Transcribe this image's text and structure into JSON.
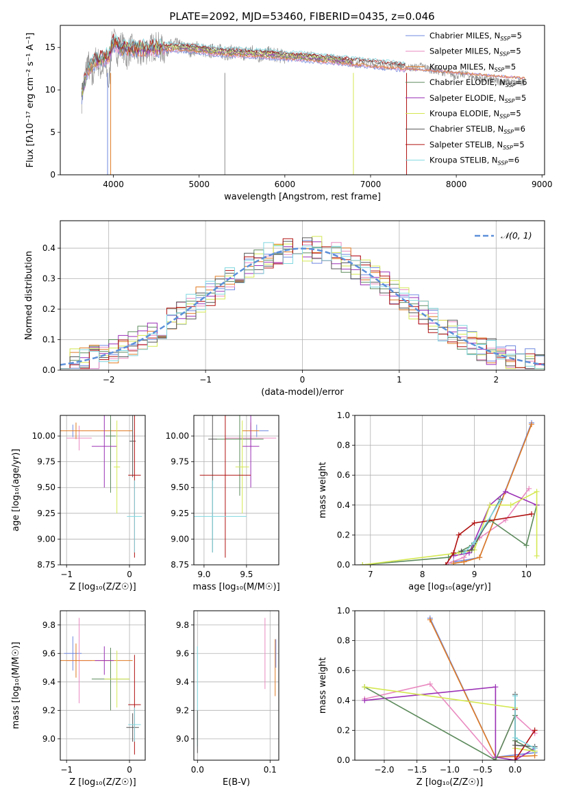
{
  "figure_title": "PLATE=2092, MJD=53460, FIBERID=0435, z=0.046",
  "models": [
    {
      "name": "Chabrier MILES",
      "nssp": "5",
      "color": "#6f88e0"
    },
    {
      "name": "Salpeter MILES",
      "nssp": "5",
      "color": "#e98ac0"
    },
    {
      "name": "Kroupa MILES",
      "nssp": "5",
      "color": "#e07a22"
    },
    {
      "name": "Chabrier ELODIE",
      "nssp": "6",
      "color": "#5c8a5c"
    },
    {
      "name": "Salpeter ELODIE",
      "nssp": "5",
      "color": "#9a2fb5"
    },
    {
      "name": "Kroupa ELODIE",
      "nssp": "5",
      "color": "#d4e850"
    },
    {
      "name": "Chabrier STELIB",
      "nssp": "6",
      "color": "#555555"
    },
    {
      "name": "Salpeter STELIB",
      "nssp": "5",
      "color": "#b01010"
    },
    {
      "name": "Kroupa STELIB",
      "nssp": "6",
      "color": "#7fd7e0"
    }
  ],
  "chart_data": [
    {
      "id": "spectrum",
      "type": "line",
      "xlabel": "wavelength [Angstrom, rest frame]",
      "ylabel": "Flux [fλ10⁻¹⁷ erg cm⁻² s⁻¹ A⁻¹]",
      "xlim": [
        3380,
        9030
      ],
      "ylim": [
        0,
        17.6
      ],
      "xticks": [
        4000,
        5000,
        6000,
        7000,
        8000,
        9000
      ],
      "yticks": [
        0,
        5,
        10,
        15
      ],
      "grid": false,
      "legend": "right",
      "data_color": "#8a8a8a",
      "data_x": [
        3630,
        3650,
        3700,
        3750,
        3800,
        3850,
        3900,
        3950,
        3970,
        4000,
        4050,
        4100,
        4150,
        4200,
        4300,
        4400,
        4500,
        4600,
        4700,
        4800,
        4900,
        5000,
        5100,
        5200,
        5300,
        5400,
        5500,
        5600,
        5700,
        5800,
        5900,
        6000,
        6100,
        6200,
        6300,
        6400,
        6500,
        6600,
        6700,
        6800,
        6900,
        7000,
        7100,
        7200,
        7300,
        7400,
        7500,
        7600,
        7700,
        7800,
        7900,
        8000,
        8100,
        8200,
        8300,
        8400,
        8500,
        8600,
        8700,
        8800
      ],
      "data_y": [
        9.0,
        10.5,
        13.5,
        11.0,
        14.0,
        12.5,
        13.0,
        10.5,
        14.5,
        16.0,
        14.5,
        15.5,
        13.8,
        15.0,
        14.0,
        14.8,
        15.2,
        14.6,
        15.4,
        15.0,
        14.7,
        15.0,
        14.4,
        14.8,
        14.3,
        14.5,
        14.2,
        14.6,
        14.0,
        14.3,
        14.1,
        13.9,
        14.0,
        13.8,
        14.1,
        13.6,
        13.9,
        13.5,
        13.4,
        13.0,
        13.2,
        13.1,
        12.9,
        12.8,
        13.0,
        12.7,
        12.6,
        12.8,
        12.4,
        12.2,
        12.0,
        11.7,
        11.9,
        11.5,
        11.3,
        11.2,
        11.0,
        10.9,
        10.8,
        11.0
      ],
      "model_x": [
        3630,
        3700,
        3800,
        3900,
        3950,
        4000,
        4100,
        4200,
        4400,
        4600,
        4800,
        5000,
        5200,
        5400,
        5600,
        5800,
        6000,
        6200,
        6400,
        6600,
        6800,
        7000,
        7200,
        7400
      ],
      "model_y": [
        9.5,
        12.5,
        13.5,
        13.8,
        14.2,
        15.6,
        15.0,
        14.8,
        14.9,
        15.0,
        15.0,
        14.8,
        14.5,
        14.4,
        14.3,
        14.2,
        14.0,
        13.9,
        13.7,
        13.5,
        13.3,
        13.1,
        12.9,
        12.7
      ],
      "dips": [
        {
          "x": 3932,
          "model": "Chabrier MILES"
        },
        {
          "x": 3968,
          "model": "Kroupa MILES"
        },
        {
          "x": 6800,
          "model": "Kroupa ELODIE"
        },
        {
          "x": 7420,
          "model": "Salpeter STELIB"
        },
        {
          "x": 5300,
          "model": "data"
        }
      ]
    },
    {
      "id": "residuals",
      "type": "histogram",
      "xlabel": "(data-model)/error",
      "ylabel": "Normed distribution",
      "xlim": [
        -2.5,
        2.5
      ],
      "ylim": [
        0,
        0.49
      ],
      "xticks": [
        -2,
        -1,
        0,
        1,
        2
      ],
      "yticks": [
        0.0,
        0.1,
        0.2,
        0.3,
        0.4
      ],
      "grid": true,
      "legend": "top-right",
      "normal_label": "𝒩(0, 1)",
      "normal_color": "#5b8fd9",
      "bin_width": 0.1
    },
    {
      "id": "age_vs_Z",
      "type": "scatter",
      "xlabel": "Z [log₁₀(Z/Z☉)]",
      "ylabel": "age  [log₁₀(age/yr)]",
      "xlim": [
        -1.1,
        0.25
      ],
      "ylim": [
        8.75,
        10.2
      ],
      "xticks": [
        -1,
        0
      ],
      "yticks": [
        8.75,
        9.0,
        9.25,
        9.5,
        9.75,
        10.0
      ],
      "grid": true,
      "points": [
        {
          "x": -0.9,
          "y": 10.05,
          "xerr": 0.14,
          "yerr": 0.06,
          "model": "Chabrier MILES"
        },
        {
          "x": -0.8,
          "y": 9.98,
          "xerr": 0.2,
          "yerr": 0.12,
          "model": "Salpeter MILES"
        },
        {
          "x": -0.85,
          "y": 10.05,
          "xerr": 0.9,
          "yerr": 0.08,
          "model": "Kroupa MILES"
        },
        {
          "x": -0.3,
          "y": 10.0,
          "xerr": 0.08,
          "yerr": 0.55,
          "model": "Chabrier ELODIE"
        },
        {
          "x": -0.4,
          "y": 9.9,
          "xerr": 0.2,
          "yerr": 0.4,
          "model": "Salpeter ELODIE"
        },
        {
          "x": -0.2,
          "y": 9.7,
          "xerr": 0.05,
          "yerr": 0.45,
          "model": "Kroupa ELODIE"
        },
        {
          "x": 0.05,
          "y": 9.95,
          "xerr": 0.05,
          "yerr": 0.35,
          "model": "Chabrier STELIB"
        },
        {
          "x": 0.08,
          "y": 9.62,
          "xerr": 0.1,
          "yerr": 0.8,
          "model": "Salpeter STELIB"
        },
        {
          "x": 0.08,
          "y": 9.22,
          "xerr": 0.12,
          "yerr": 0.35,
          "model": "Kroupa STELIB"
        }
      ]
    },
    {
      "id": "age_vs_mass",
      "type": "scatter",
      "xlabel": "mass [log₁₀(M/M☉)]",
      "ylabel": "",
      "xlim": [
        8.88,
        9.88
      ],
      "ylim": [
        8.75,
        10.2
      ],
      "xticks": [
        9.0,
        9.5
      ],
      "yticks": [
        8.75,
        9.0,
        9.25,
        9.5,
        9.75,
        10.0
      ],
      "grid": true,
      "points": [
        {
          "x": 9.62,
          "y": 10.05,
          "xerr": 0.14,
          "yerr": 0.06,
          "model": "Chabrier MILES"
        },
        {
          "x": 9.55,
          "y": 9.98,
          "xerr": 0.3,
          "yerr": 0.12,
          "model": "Salpeter MILES"
        },
        {
          "x": 9.55,
          "y": 10.05,
          "xerr": 0.1,
          "yerr": 0.08,
          "model": "Kroupa MILES"
        },
        {
          "x": 9.42,
          "y": 9.97,
          "xerr": 0.28,
          "yerr": 0.55,
          "model": "Chabrier ELODIE"
        },
        {
          "x": 9.55,
          "y": 9.9,
          "xerr": 0.1,
          "yerr": 0.4,
          "model": "Salpeter ELODIE"
        },
        {
          "x": 9.45,
          "y": 9.7,
          "xerr": 0.08,
          "yerr": 0.45,
          "model": "Kroupa ELODIE"
        },
        {
          "x": 9.1,
          "y": 9.97,
          "xerr": 0.05,
          "yerr": 1.1,
          "model": "Chabrier STELIB"
        },
        {
          "x": 9.25,
          "y": 9.62,
          "xerr": 0.3,
          "yerr": 0.8,
          "model": "Salpeter STELIB"
        },
        {
          "x": 9.1,
          "y": 9.22,
          "xerr": 0.4,
          "yerr": 0.35,
          "model": "Kroupa STELIB"
        }
      ]
    },
    {
      "id": "weight_vs_age",
      "type": "line",
      "xlabel": "age  [log₁₀(age/yr)]",
      "ylabel": "mass weight",
      "xlim": [
        6.7,
        10.35
      ],
      "ylim": [
        0,
        1.0
      ],
      "xticks": [
        7,
        8,
        9,
        10
      ],
      "yticks": [
        0.0,
        0.2,
        0.4,
        0.6,
        0.8,
        1.0
      ],
      "grid": true,
      "series": [
        {
          "model": "Chabrier MILES",
          "x": [
            8.6,
            8.8,
            9.1,
            10.1
          ],
          "y": [
            0.02,
            0.03,
            0.05,
            0.95
          ]
        },
        {
          "model": "Salpeter MILES",
          "x": [
            8.5,
            8.8,
            9.1,
            9.6,
            10.05
          ],
          "y": [
            0.01,
            0.05,
            0.18,
            0.3,
            0.51
          ]
        },
        {
          "model": "Kroupa MILES",
          "x": [
            8.6,
            8.8,
            9.1,
            10.1
          ],
          "y": [
            0.01,
            0.02,
            0.05,
            0.94
          ]
        },
        {
          "model": "Chabrier ELODIE",
          "x": [
            6.85,
            8.5,
            8.95,
            9.3,
            10.0,
            10.2
          ],
          "y": [
            0.0,
            0.05,
            0.13,
            0.3,
            0.13,
            0.4
          ]
        },
        {
          "model": "Salpeter ELODIE",
          "x": [
            8.6,
            8.9,
            9.3,
            9.6,
            10.2
          ],
          "y": [
            0.06,
            0.08,
            0.4,
            0.49,
            0.4
          ]
        },
        {
          "model": "Kroupa ELODIE",
          "x": [
            6.85,
            8.7,
            9.0,
            9.3,
            9.7,
            10.2,
            10.2
          ],
          "y": [
            0.0,
            0.08,
            0.1,
            0.4,
            0.4,
            0.49,
            0.06
          ]
        },
        {
          "model": "Chabrier STELIB",
          "x": [
            8.75,
            8.95,
            9.5
          ],
          "y": [
            0.09,
            0.1,
            0.44
          ]
        },
        {
          "model": "Salpeter STELIB",
          "x": [
            8.45,
            8.6,
            8.7,
            9.0,
            10.1
          ],
          "y": [
            0.0,
            0.08,
            0.2,
            0.28,
            0.34
          ]
        },
        {
          "model": "Kroupa STELIB",
          "x": [
            8.8,
            9.0,
            9.5
          ],
          "y": [
            0.08,
            0.15,
            0.43
          ]
        }
      ]
    },
    {
      "id": "mass_vs_Z",
      "type": "scatter",
      "xlabel": "Z [log₁₀(Z/Z☉)]",
      "ylabel": "mass [log₁₀(M/M☉)]",
      "xlim": [
        -1.1,
        0.25
      ],
      "ylim": [
        8.85,
        9.9
      ],
      "xticks": [
        -1,
        0
      ],
      "yticks": [
        9.0,
        9.2,
        9.4,
        9.6,
        9.8
      ],
      "grid": true,
      "points": [
        {
          "x": -0.9,
          "y": 9.6,
          "xerr": 0.14,
          "yerr": 0.12,
          "model": "Chabrier MILES"
        },
        {
          "x": -0.8,
          "y": 9.55,
          "xerr": 0.2,
          "yerr": 0.3,
          "model": "Salpeter MILES"
        },
        {
          "x": -0.85,
          "y": 9.55,
          "xerr": 0.9,
          "yerr": 0.12,
          "model": "Kroupa MILES"
        },
        {
          "x": -0.3,
          "y": 9.42,
          "xerr": 0.3,
          "yerr": 0.22,
          "model": "Chabrier ELODIE"
        },
        {
          "x": -0.4,
          "y": 9.55,
          "xerr": 0.15,
          "yerr": 0.1,
          "model": "Salpeter ELODIE"
        },
        {
          "x": -0.2,
          "y": 9.42,
          "xerr": 0.2,
          "yerr": 0.2,
          "model": "Kroupa ELODIE"
        },
        {
          "x": 0.05,
          "y": 9.08,
          "xerr": 0.1,
          "yerr": 0.1,
          "model": "Chabrier STELIB"
        },
        {
          "x": 0.08,
          "y": 9.24,
          "xerr": 0.1,
          "yerr": 0.35,
          "model": "Salpeter STELIB"
        },
        {
          "x": 0.08,
          "y": 9.1,
          "xerr": 0.1,
          "yerr": 0.12,
          "model": "Kroupa STELIB"
        }
      ]
    },
    {
      "id": "mass_vs_EBV",
      "type": "scatter",
      "xlabel": "E(B-V)",
      "ylabel": "",
      "xlim": [
        -0.005,
        0.112
      ],
      "ylim": [
        8.85,
        9.9
      ],
      "xticks": [
        0.0,
        0.1
      ],
      "yticks": [
        9.0,
        9.2,
        9.4,
        9.6,
        9.8
      ],
      "grid": true,
      "points": [
        {
          "x": 0.0,
          "y": 9.3,
          "yerr": 0.35,
          "model": "Kroupa STELIB"
        },
        {
          "x": 0.0,
          "y": 9.05,
          "yerr": 0.15,
          "model": "Chabrier STELIB"
        },
        {
          "x": 0.093,
          "y": 9.6,
          "yerr": 0.25,
          "model": "Salpeter MILES"
        },
        {
          "x": 0.107,
          "y": 9.5,
          "yerr": 0.2,
          "model": "Kroupa MILES"
        },
        {
          "x": 0.108,
          "y": 9.6,
          "yerr": 0.1,
          "model": "Chabrier MILES"
        }
      ]
    },
    {
      "id": "weight_vs_Z",
      "type": "line",
      "xlabel": "Z [log₁₀(Z/Z☉)]",
      "ylabel": "mass weight",
      "xlim": [
        -2.45,
        0.45
      ],
      "ylim": [
        0,
        1.0
      ],
      "xticks": [
        -2.0,
        -1.5,
        -1.0,
        -0.5,
        0.0
      ],
      "yticks": [
        0.0,
        0.2,
        0.4,
        0.6,
        0.8,
        1.0
      ],
      "grid": true,
      "series": [
        {
          "model": "Chabrier MILES",
          "x": [
            -1.3,
            -0.3,
            0.3
          ],
          "y": [
            0.95,
            0.02,
            0.05
          ]
        },
        {
          "model": "Kroupa MILES",
          "x": [
            -1.3,
            -0.3,
            0.3
          ],
          "y": [
            0.94,
            0.02,
            0.03
          ]
        },
        {
          "model": "Salpeter MILES",
          "x": [
            -2.3,
            -1.3,
            -0.3,
            0.0,
            0.3
          ],
          "y": [
            0.41,
            0.51,
            0.0,
            0.3,
            0.18
          ]
        },
        {
          "model": "Salpeter ELODIE",
          "x": [
            -2.3,
            -0.3,
            -0.3,
            0.0,
            0.3
          ],
          "y": [
            0.4,
            0.49,
            0.02,
            0.0,
            0.08
          ]
        },
        {
          "model": "Chabrier ELODIE",
          "x": [
            -2.3,
            -0.3,
            0.0,
            0.0,
            0.3
          ],
          "y": [
            0.49,
            0.0,
            0.3,
            0.13,
            0.06
          ]
        },
        {
          "model": "Kroupa ELODIE",
          "x": [
            -2.3,
            0.0,
            0.0,
            0.3
          ],
          "y": [
            0.49,
            0.35,
            0.08,
            0.06
          ]
        },
        {
          "model": "Salpeter STELIB",
          "x": [
            0.0,
            0.0,
            0.3
          ],
          "y": [
            0.34,
            0.0,
            0.2
          ]
        },
        {
          "model": "Chabrier STELIB",
          "x": [
            0.0,
            0.0,
            0.3
          ],
          "y": [
            0.44,
            0.1,
            0.09
          ]
        },
        {
          "model": "Kroupa STELIB",
          "x": [
            0.0,
            0.0,
            0.3
          ],
          "y": [
            0.43,
            0.15,
            0.08
          ]
        }
      ]
    }
  ]
}
